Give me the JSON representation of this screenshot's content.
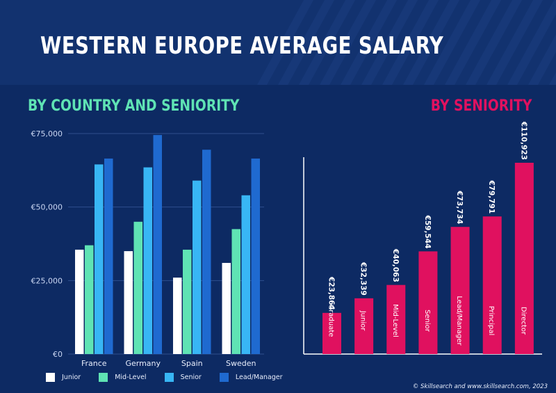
{
  "title": "WESTERN EUROPE AVERAGE SALARY",
  "subtitle_left": "BY COUNTRY AND SENIORITY",
  "subtitle_right": "BY SENIORITY",
  "copyright": "© Skillsearch and www.skillsearch.com, 2023",
  "colors": {
    "background": "#0d2a63",
    "header": "#12326f",
    "green": "#5fe3b4",
    "pink": "#e0115f",
    "junior": "#ffffff",
    "mid": "#5fe3b4",
    "senior": "#38b6f5",
    "lead": "#1f6ad0"
  },
  "legend": [
    {
      "label": "Junior",
      "color": "#ffffff"
    },
    {
      "label": "Mid-Level",
      "color": "#5fe3b4"
    },
    {
      "label": "Senior",
      "color": "#38b6f5"
    },
    {
      "label": "Lead/Manager",
      "color": "#1f6ad0"
    }
  ],
  "chart_data": [
    {
      "type": "bar",
      "title": "BY COUNTRY AND SENIORITY",
      "categories": [
        "France",
        "Germany",
        "Spain",
        "Sweden"
      ],
      "series": [
        {
          "name": "Junior",
          "values": [
            35500,
            35000,
            26000,
            31000
          ]
        },
        {
          "name": "Mid-Level",
          "values": [
            37000,
            45000,
            35500,
            42500
          ]
        },
        {
          "name": "Senior",
          "values": [
            64500,
            63500,
            59000,
            54000
          ]
        },
        {
          "name": "Lead/Manager",
          "values": [
            66500,
            74500,
            69500,
            66500
          ]
        }
      ],
      "yticks": [
        "€0",
        "€25,000",
        "€50,000",
        "€75,000"
      ],
      "ytick_values": [
        0,
        25000,
        50000,
        75000
      ],
      "ylim": [
        0,
        75000
      ],
      "grid": true,
      "legend": "bottom"
    },
    {
      "type": "bar",
      "title": "BY SENIORITY",
      "categories": [
        "Graduate",
        "Junior",
        "Mid-Level",
        "Senior",
        "Lead/Manager",
        "Principal",
        "Director"
      ],
      "values": [
        23864,
        32339,
        40063,
        59544,
        73734,
        79791,
        110923
      ],
      "value_labels": [
        "€23,864",
        "€32,339",
        "€40,063",
        "€59,544",
        "€73,734",
        "€79,791",
        "€110,923"
      ],
      "ylim": [
        0,
        110923
      ],
      "grid": false
    }
  ]
}
